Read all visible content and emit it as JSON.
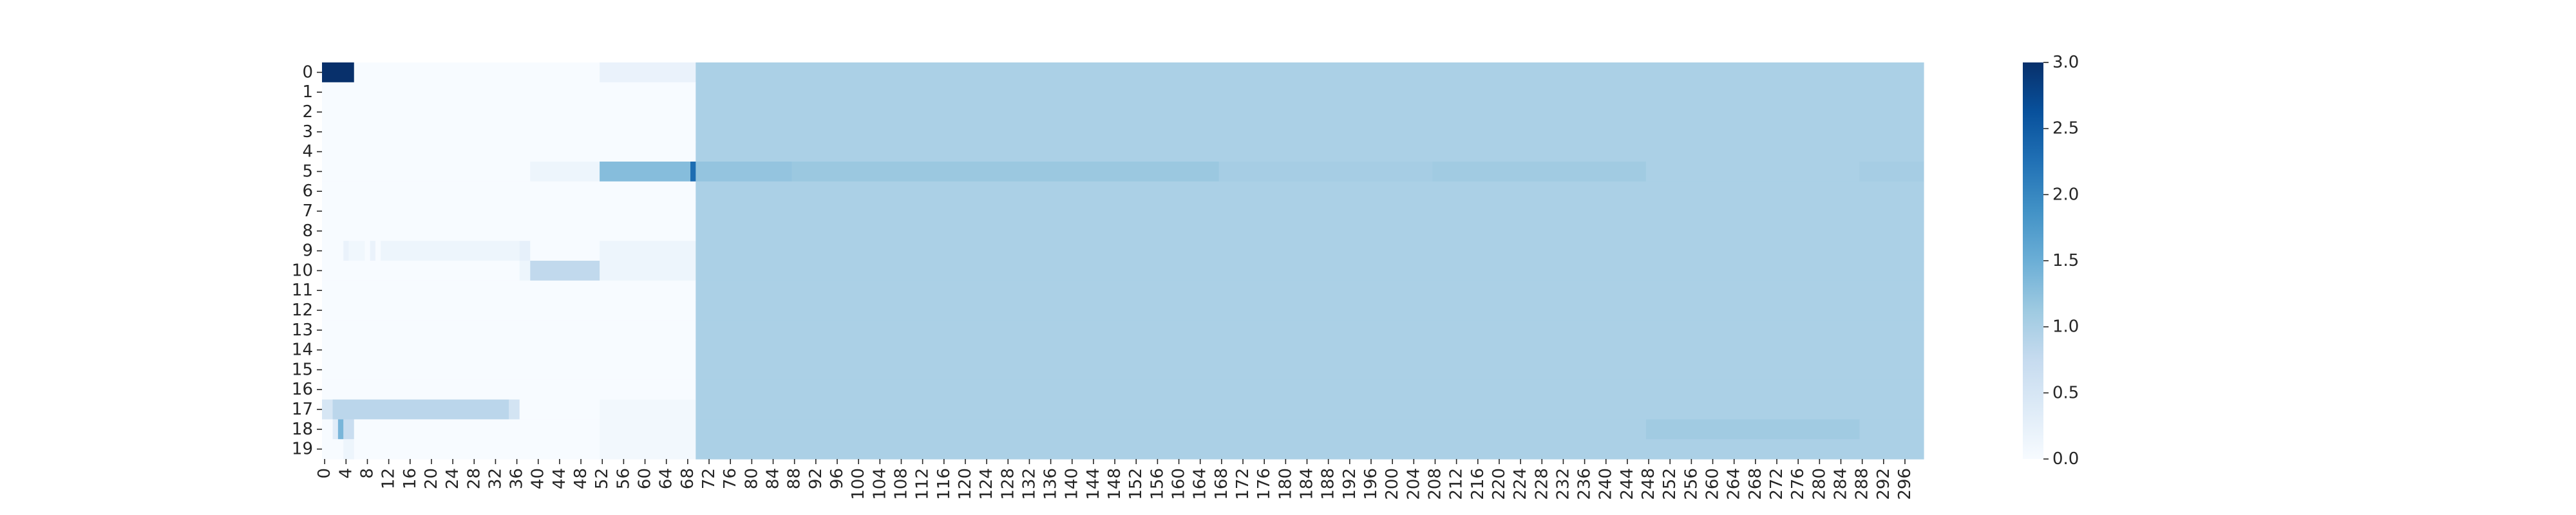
{
  "chart_data": {
    "type": "heatmap",
    "title": "",
    "xlabel": "",
    "ylabel": "",
    "n_rows": 20,
    "n_cols": 300,
    "x_tick_step": 4,
    "colormap": "Blues",
    "colormap_stops": [
      "#f7fbff",
      "#deebf7",
      "#c6dbef",
      "#9ecae1",
      "#6baed6",
      "#4292c6",
      "#2171b5",
      "#08519c",
      "#08306b"
    ],
    "value_range": [
      0.0,
      3.0
    ],
    "colorbar": {
      "position": "right",
      "ticks": [
        {
          "value": 0.0,
          "label": "0.0"
        },
        {
          "value": 0.5,
          "label": "0.5"
        },
        {
          "value": 1.0,
          "label": "1.0"
        },
        {
          "value": 1.5,
          "label": "1.5"
        },
        {
          "value": 2.0,
          "label": "2.0"
        },
        {
          "value": 2.5,
          "label": "2.5"
        },
        {
          "value": 3.0,
          "label": "3.0"
        }
      ]
    },
    "background_value": 0.0,
    "cell_value_regions": [
      {
        "rows": [
          0,
          19
        ],
        "cols": [
          70,
          299
        ],
        "value": 1.0
      },
      {
        "rows": [
          0,
          0
        ],
        "cols": [
          0,
          5
        ],
        "value": 3.0
      },
      {
        "rows": [
          0,
          0
        ],
        "cols": [
          52,
          69
        ],
        "value": 0.2
      },
      {
        "rows": [
          5,
          5
        ],
        "cols": [
          39,
          51
        ],
        "value": 0.15
      },
      {
        "rows": [
          5,
          5
        ],
        "cols": [
          52,
          69
        ],
        "value": 1.3
      },
      {
        "rows": [
          5,
          5
        ],
        "cols": [
          69,
          69
        ],
        "value": 2.3
      },
      {
        "rows": [
          5,
          5
        ],
        "cols": [
          70,
          87
        ],
        "value": 1.2
      },
      {
        "rows": [
          5,
          5
        ],
        "cols": [
          88,
          167
        ],
        "value": 1.15
      },
      {
        "rows": [
          5,
          5
        ],
        "cols": [
          168,
          207
        ],
        "value": 1.05
      },
      {
        "rows": [
          5,
          5
        ],
        "cols": [
          208,
          247
        ],
        "value": 1.1
      },
      {
        "rows": [
          5,
          5
        ],
        "cols": [
          288,
          299
        ],
        "value": 1.05
      },
      {
        "rows": [
          9,
          9
        ],
        "cols": [
          4,
          4
        ],
        "value": 0.2
      },
      {
        "rows": [
          9,
          9
        ],
        "cols": [
          5,
          7
        ],
        "value": 0.1
      },
      {
        "rows": [
          9,
          9
        ],
        "cols": [
          9,
          9
        ],
        "value": 0.2
      },
      {
        "rows": [
          9,
          9
        ],
        "cols": [
          11,
          36
        ],
        "value": 0.15
      },
      {
        "rows": [
          9,
          9
        ],
        "cols": [
          37,
          38
        ],
        "value": 0.25
      },
      {
        "rows": [
          9,
          9
        ],
        "cols": [
          52,
          69
        ],
        "value": 0.15
      },
      {
        "rows": [
          10,
          10
        ],
        "cols": [
          37,
          38
        ],
        "value": 0.15
      },
      {
        "rows": [
          10,
          10
        ],
        "cols": [
          39,
          51
        ],
        "value": 0.8
      },
      {
        "rows": [
          10,
          10
        ],
        "cols": [
          52,
          69
        ],
        "value": 0.15
      },
      {
        "rows": [
          17,
          17
        ],
        "cols": [
          0,
          1
        ],
        "value": 0.5
      },
      {
        "rows": [
          17,
          17
        ],
        "cols": [
          2,
          34
        ],
        "value": 0.85
      },
      {
        "rows": [
          17,
          17
        ],
        "cols": [
          35,
          36
        ],
        "value": 0.55
      },
      {
        "rows": [
          17,
          17
        ],
        "cols": [
          52,
          69
        ],
        "value": 0.08
      },
      {
        "rows": [
          18,
          18
        ],
        "cols": [
          2,
          2
        ],
        "value": 0.35
      },
      {
        "rows": [
          18,
          18
        ],
        "cols": [
          3,
          3
        ],
        "value": 1.4
      },
      {
        "rows": [
          18,
          18
        ],
        "cols": [
          4,
          5
        ],
        "value": 0.7
      },
      {
        "rows": [
          18,
          18
        ],
        "cols": [
          52,
          69
        ],
        "value": 0.08
      },
      {
        "rows": [
          18,
          18
        ],
        "cols": [
          248,
          287
        ],
        "value": 1.1
      },
      {
        "rows": [
          19,
          19
        ],
        "cols": [
          4,
          5
        ],
        "value": 0.15
      },
      {
        "rows": [
          19,
          19
        ],
        "cols": [
          52,
          69
        ],
        "value": 0.08
      }
    ]
  }
}
